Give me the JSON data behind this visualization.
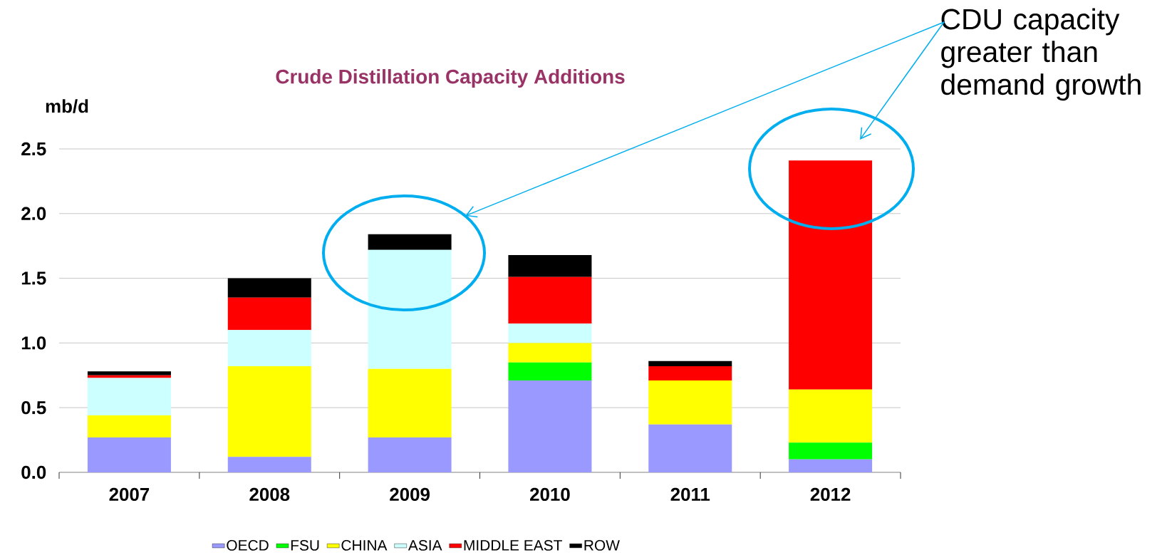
{
  "chart_data": {
    "type": "bar",
    "title": "Crude Distillation Capacity Additions",
    "ylabel": "mb/d",
    "categories": [
      "2007",
      "2008",
      "2009",
      "2010",
      "2011",
      "2012"
    ],
    "stacked": true,
    "series": [
      {
        "name": "OECD",
        "color": "#9999ff",
        "values": [
          0.27,
          0.12,
          0.27,
          0.71,
          0.37,
          0.1
        ]
      },
      {
        "name": "FSU",
        "color": "#00ff00",
        "values": [
          0,
          0,
          0,
          0.14,
          0,
          0.13
        ]
      },
      {
        "name": "CHINA",
        "color": "#ffff00",
        "values": [
          0.17,
          0.7,
          0.53,
          0.15,
          0.34,
          0.41
        ]
      },
      {
        "name": "ASIA",
        "color": "#ccffff",
        "values": [
          0.29,
          0.28,
          0.92,
          0.15,
          0,
          0
        ]
      },
      {
        "name": "MIDDLE EAST",
        "color": "#ff0000",
        "values": [
          0.02,
          0.25,
          0,
          0.36,
          0.11,
          1.77
        ]
      },
      {
        "name": "ROW",
        "color": "#000000",
        "values": [
          0.03,
          0.15,
          0.12,
          0.17,
          0.04,
          0
        ]
      }
    ],
    "ylim": [
      0,
      2.5
    ],
    "yticks": [
      {
        "value": 0,
        "label": "0.0"
      },
      0.5,
      {
        "value": 1,
        "label": "1.0"
      },
      1.5,
      {
        "value": 2,
        "label": "2.0"
      },
      2.5
    ],
    "grid": "y",
    "legend": "bottom",
    "annotations": [
      "CDU capacity greater than demand growth"
    ]
  }
}
